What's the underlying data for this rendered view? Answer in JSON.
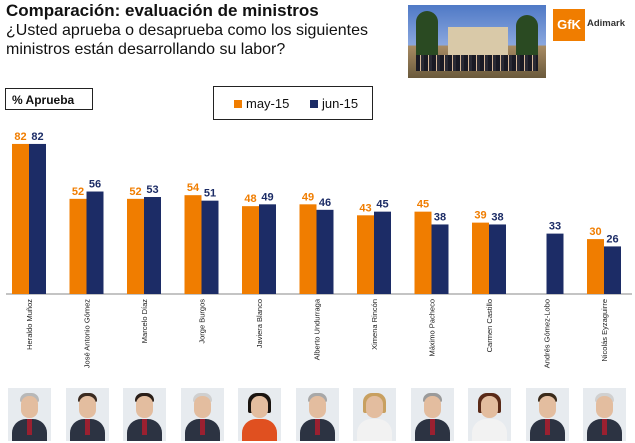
{
  "header": {
    "title": "Comparación: evaluación de ministros",
    "question": "¿Usted aprueba o desaprueba como los siguientes ministros están desarrollando su labor?"
  },
  "brand": {
    "logo_mark": "GfK",
    "logo_text": "Adimark"
  },
  "percent_label": "% Aprueba",
  "colors": {
    "may": "#f07d00",
    "jun": "#1c2c66"
  },
  "chart_data": {
    "type": "bar",
    "title": "",
    "xlabel": "",
    "ylabel": "% Aprueba",
    "ylim": [
      0,
      100
    ],
    "grid": false,
    "legend": "top-center",
    "categories": [
      "Heraldo Muñoz",
      "José Antonio Gómez",
      "Marcelo Díaz",
      "Jorge Burgos",
      "Javiera Blanco",
      "Alberto Undurraga",
      "Ximena Rincón",
      "Máximo Pacheco",
      "Carmen Castillo",
      "Andrés Gómez-Lobo",
      "Nicolás Eyzaguirre"
    ],
    "series": [
      {
        "name": "may-15",
        "values": [
          82,
          52,
          52,
          54,
          48,
          49,
          43,
          45,
          39,
          null,
          30
        ]
      },
      {
        "name": "jun-15",
        "values": [
          82,
          56,
          53,
          51,
          49,
          46,
          45,
          38,
          38,
          33,
          26
        ]
      }
    ]
  }
}
